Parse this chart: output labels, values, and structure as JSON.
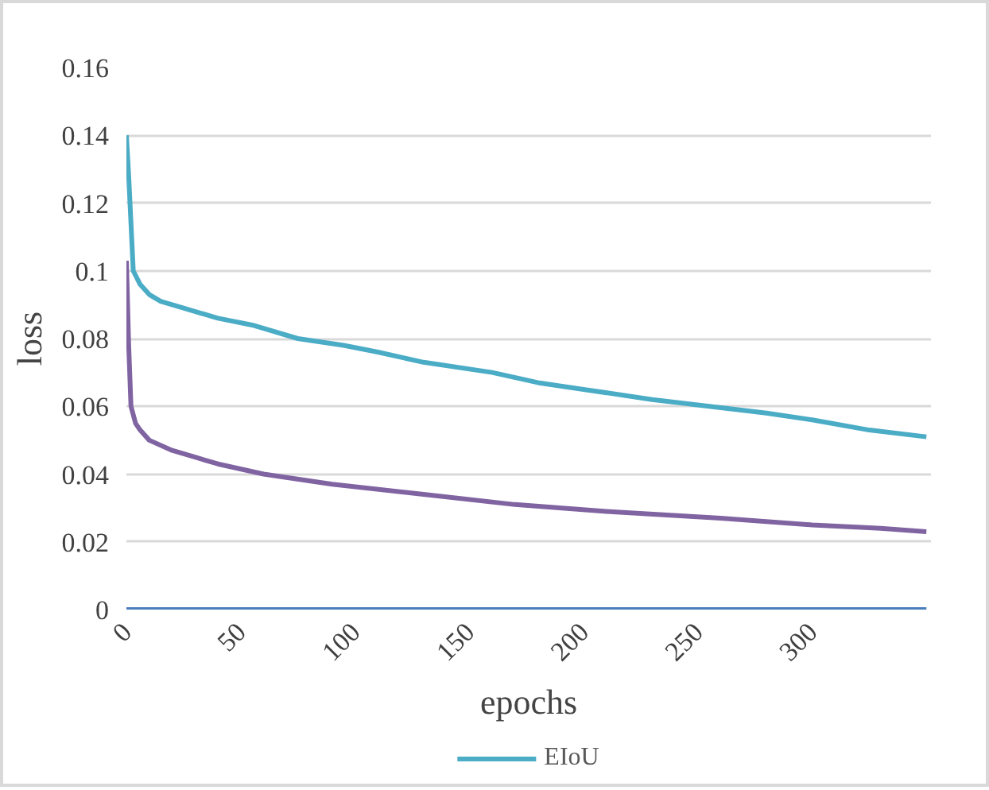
{
  "chart_data": {
    "type": "line",
    "xlabel": "epochs",
    "ylabel": "loss",
    "xlim": [
      0,
      352
    ],
    "xticks": [
      0,
      50,
      100,
      150,
      200,
      250,
      300
    ],
    "ylim": [
      0,
      0.16
    ],
    "yticks": [
      0,
      0.02,
      0.04,
      0.06,
      0.08,
      0.1,
      0.12,
      0.14,
      0.16
    ],
    "grid": "y",
    "legend": "bottom",
    "line_style": "solid",
    "marker": "none",
    "series": [
      {
        "name": "EIoU",
        "color": "#4bacc6",
        "x": [
          0,
          1,
          3,
          6,
          10,
          15,
          25,
          40,
          55,
          75,
          95,
          110,
          130,
          160,
          180,
          200,
          230,
          255,
          280,
          300,
          325,
          350
        ],
        "values": [
          0.14,
          0.128,
          0.1,
          0.096,
          0.093,
          0.091,
          0.089,
          0.086,
          0.084,
          0.08,
          0.078,
          0.076,
          0.073,
          0.07,
          0.067,
          0.065,
          0.062,
          0.06,
          0.058,
          0.056,
          0.053,
          0.051
        ]
      },
      {
        "color": "#8064a2",
        "x": [
          0,
          1,
          2,
          4,
          6,
          10,
          20,
          30,
          40,
          60,
          90,
          130,
          170,
          210,
          260,
          300,
          330,
          350
        ],
        "values": [
          0.103,
          0.078,
          0.06,
          0.055,
          0.053,
          0.05,
          0.047,
          0.045,
          0.043,
          0.04,
          0.037,
          0.034,
          0.031,
          0.029,
          0.027,
          0.025,
          0.024,
          0.023
        ]
      },
      {
        "color": "#4a7ebb",
        "x": [
          0,
          350
        ],
        "values": [
          0,
          0
        ]
      }
    ]
  }
}
